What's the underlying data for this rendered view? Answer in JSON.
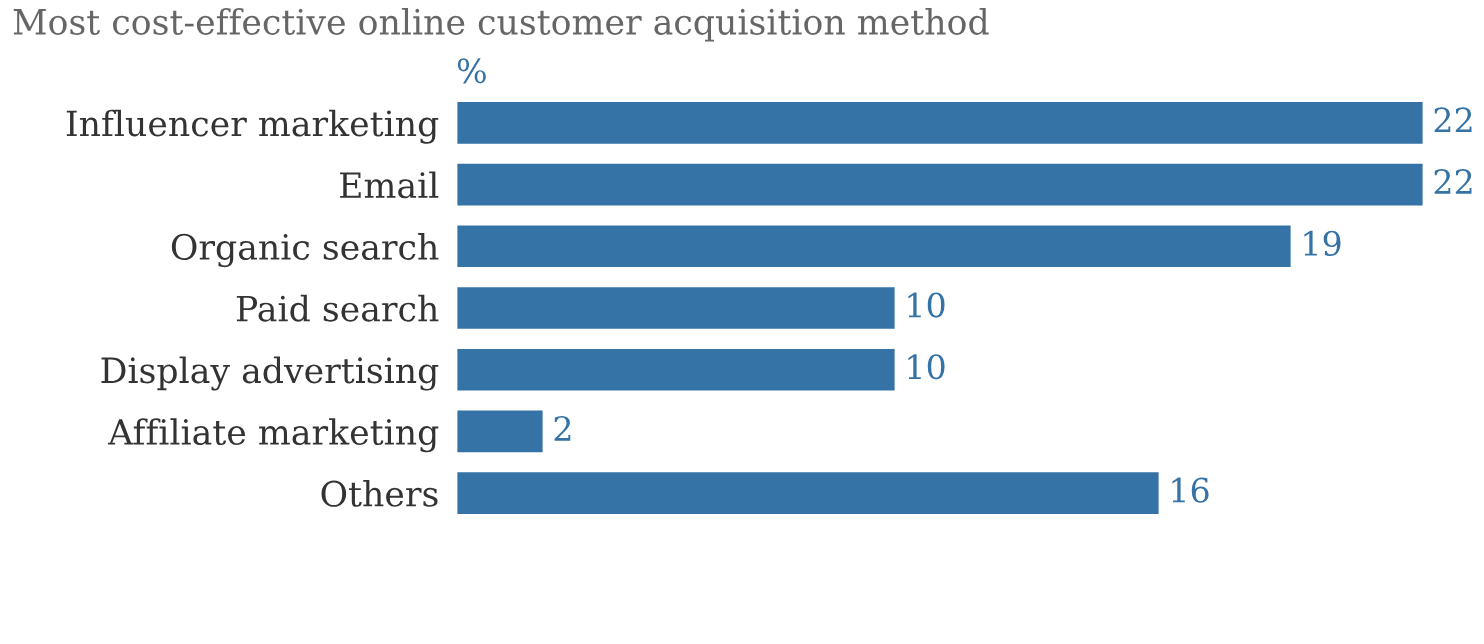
{
  "chart_data": {
    "type": "bar",
    "orientation": "horizontal",
    "title": "Most cost-effective online customer acquisition method",
    "xlabel": "%",
    "categories": [
      "Influencer marketing",
      "Email",
      "Organic search",
      "Paid search",
      "Display advertising",
      "Affiliate marketing",
      "Others"
    ],
    "values": [
      22,
      22,
      19,
      10,
      10,
      2,
      16
    ],
    "color": "#3572a5",
    "data_labels": true,
    "grid": false,
    "legend": false
  }
}
